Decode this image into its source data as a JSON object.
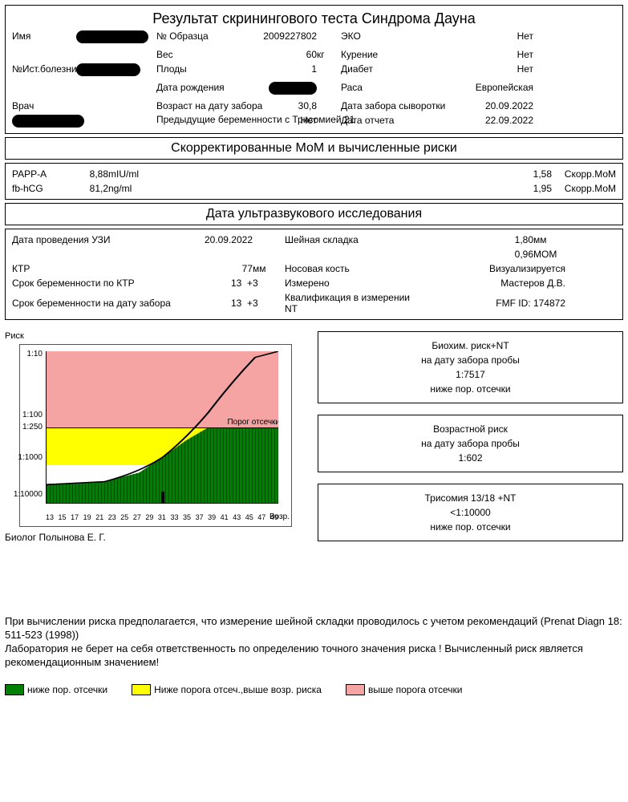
{
  "title": "Результат скринингового теста Синдрома Дауна",
  "patient": {
    "name_label": "Имя",
    "history_label": "№Ист.болезни",
    "doctor_label": "Врач",
    "sample_label": "№ Образца",
    "sample": "2009227802",
    "eco_label": "ЭКО",
    "eco": "Нет",
    "weight_label": "Вес",
    "weight": "60",
    "weight_unit": "кг",
    "smoking_label": "Курение",
    "smoking": "Нет",
    "fetuses_label": "Плоды",
    "fetuses": "1",
    "diabetes_label": "Диабет",
    "diabetes": "Нет",
    "dob_label": "Дата рождения",
    "race_label": "Раса",
    "race": "Европейская",
    "age_label": "Возраст на дату забора",
    "age": "30,8",
    "serum_date_label": "Дата забора сыворотки",
    "serum_date": "20.09.2022",
    "prev_t21_label": "Предыдущие беременности с Трисомией 21",
    "prev_t21": "Нет",
    "report_date_label": "Дата отчета",
    "report_date": "22.09.2022"
  },
  "mom": {
    "title": "Скорректированные МоМ и вычисленные риски",
    "rows": [
      {
        "analyte": "PAPP-A",
        "value": "8,88",
        "unit": "mIU/ml",
        "mom": "1,58",
        "suffix": "Скорр.МоМ"
      },
      {
        "analyte": "fb-hCG",
        "value": "81,2",
        "unit": "ng/ml",
        "mom": "1,95",
        "suffix": "Скорр.МоМ"
      }
    ]
  },
  "us": {
    "title": "Дата ультразвукового исследования",
    "date_label": "Дата проведения УЗИ",
    "date": "20.09.2022",
    "nt_label": "Шейная складка",
    "nt": "1,80",
    "nt_unit": "мм",
    "nt_mom": "0,96",
    "nt_mom_suffix": "МОМ",
    "crl_label": "КТР",
    "crl": "77",
    "crl_unit": "мм",
    "nb_label": "Носовая кость",
    "nb": "Визуализируется",
    "ga_crl_label": "Срок беременности по КТР",
    "ga_crl_w": "13",
    "plus": "+",
    "ga_crl_d": "3",
    "measured_label": "Измерено",
    "measured": "Мастеров Д.В.",
    "ga_samp_label": "Срок беременности на дату забора",
    "ga_samp_w": "13",
    "ga_samp_d": "3",
    "qual_label": "Квалификация в измерении NT",
    "qual": "FMF ID: 174872"
  },
  "chart": {
    "label": "Риск",
    "ylabels": [
      "1:10",
      "1:100",
      "1:250",
      "1:1000",
      "1:10000"
    ],
    "xlabels": [
      "13",
      "15",
      "17",
      "19",
      "21",
      "23",
      "25",
      "27",
      "29",
      "31",
      "33",
      "35",
      "37",
      "39",
      "41",
      "43",
      "45",
      "47",
      "49"
    ],
    "xaxis_title": "Возр.",
    "cutoff_text": "Порог отсечки",
    "colors": {
      "red": "#f5a3a3",
      "yellow": "#ffff00",
      "green": "#008000"
    },
    "marker_age": 31
  },
  "risks": [
    {
      "t1": "Биохим. риск+NT",
      "t2": "на дату забора пробы",
      "t3": "1:7517",
      "t4": "ниже пор. отсечки"
    },
    {
      "t1": "Возрастной риск",
      "t2": "на дату забора пробы",
      "t3": "1:602",
      "t4": ""
    },
    {
      "t1": "Трисомия 13/18 +NT",
      "t2": "",
      "t3": "<1:10000",
      "t4": "ниже пор. отсечки"
    }
  ],
  "biolog_label": "Биолог",
  "biolog": "Полынова Е. Г.",
  "disclaimer1": "При вычислении риска предполагается, что измерение шейной складки проводилось с учетом рекомендаций (Prenat Diagn 18: 511-523 (1998))",
  "disclaimer2": "Лаборатория не берет на себя ответственность по определению точного значения риска ! Вычисленный риск является рекомендационным значением!",
  "legend": [
    {
      "color": "#008000",
      "text": "ниже пор. отсечки"
    },
    {
      "color": "#ffff00",
      "text": "Ниже порога отсеч.,выше возр. риска"
    },
    {
      "color": "#f5a3a3",
      "text": "выше порога отсечки"
    }
  ]
}
